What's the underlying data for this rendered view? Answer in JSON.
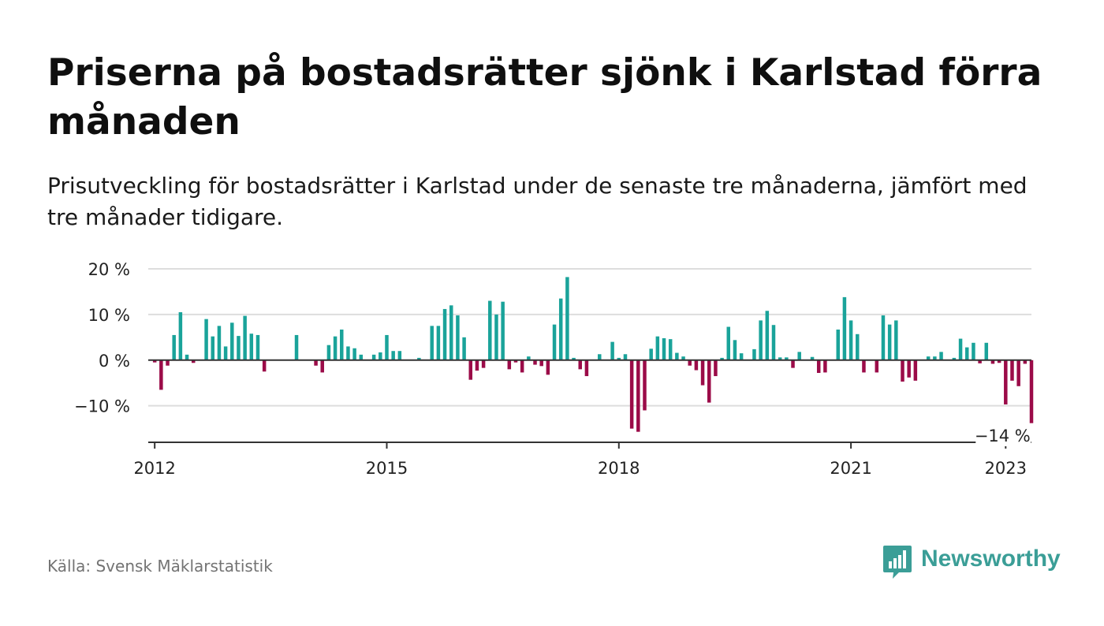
{
  "header": {
    "title": "Priserna på bostadsrätter sjönk i Karlstad förra månaden",
    "subtitle": "Prisutveckling för bostadsrätter i Karlstad under de senaste tre månaderna, jämfört med tre månader tidigare."
  },
  "footer": {
    "source": "Källa: Svensk Mäklarstatistik",
    "brand": "Newsworthy",
    "brand_icon": "bar-chart-speech-bubble-icon"
  },
  "colors": {
    "positive": "#1aa39a",
    "negative": "#9b0b48",
    "grid": "#dddddd",
    "zero_line": "#333333",
    "brand": "#3b9e97"
  },
  "chart_data": {
    "type": "bar",
    "x_start": "2012-01",
    "x_step": "month",
    "xlim": [
      "2011-12",
      "2023-05"
    ],
    "ylim": [
      -18,
      20
    ],
    "yticks": [
      20,
      10,
      0,
      -10
    ],
    "ytick_labels": [
      "20 %",
      "10 %",
      "0 %",
      "−10 %"
    ],
    "xticks": [
      "2012-01",
      "2015-01",
      "2018-01",
      "2021-01",
      "2023-01"
    ],
    "xtick_labels": [
      "2012",
      "2015",
      "2018",
      "2021",
      "2023"
    ],
    "grid": true,
    "legend": false,
    "annotation": {
      "label": "−14 %",
      "x": "2023-01",
      "value": -14
    },
    "values": [
      -0.5,
      -6.5,
      -1.2,
      5.5,
      10.5,
      1.2,
      -0.6,
      0,
      9,
      5.2,
      7.5,
      3,
      8.2,
      5.3,
      9.7,
      5.8,
      5.5,
      -2.5,
      0,
      0,
      0,
      0,
      5.5,
      0,
      0,
      -1.2,
      -2.7,
      3.3,
      5.2,
      6.7,
      3,
      2.6,
      1.2,
      0,
      1.2,
      1.7,
      5.5,
      2,
      2,
      0,
      0,
      0.5,
      0,
      7.5,
      7.5,
      11.2,
      12,
      9.8,
      5,
      -4.3,
      -2.3,
      -1.7,
      13,
      10,
      12.8,
      -2,
      -0.5,
      -2.7,
      0.8,
      -1,
      -1.3,
      -3.2,
      7.8,
      13.5,
      18.2,
      0.5,
      -2,
      -3.5,
      0,
      1.3,
      0,
      4,
      0.5,
      1.3,
      -15,
      -15.7,
      -11,
      2.5,
      5.2,
      4.8,
      4.6,
      1.6,
      0.8,
      -1.2,
      -2.2,
      -5.5,
      -9.3,
      -3.5,
      0.5,
      7.3,
      4.4,
      1.5,
      0,
      2.4,
      8.7,
      10.8,
      7.7,
      0.6,
      0.6,
      -1.7,
      1.8,
      0,
      0.7,
      -2.8,
      -2.7,
      0,
      6.7,
      13.8,
      8.7,
      5.7,
      -2.7,
      0,
      -2.7,
      9.8,
      7.8,
      8.7,
      -4.7,
      -3.8,
      -4.5,
      0,
      0.8,
      0.8,
      1.8,
      0,
      0.5,
      4.7,
      2.8,
      3.8,
      -0.7,
      3.8,
      -0.8,
      -0.6,
      -9.7,
      -4.5,
      -5.7,
      -0.8,
      -13.8
    ]
  }
}
